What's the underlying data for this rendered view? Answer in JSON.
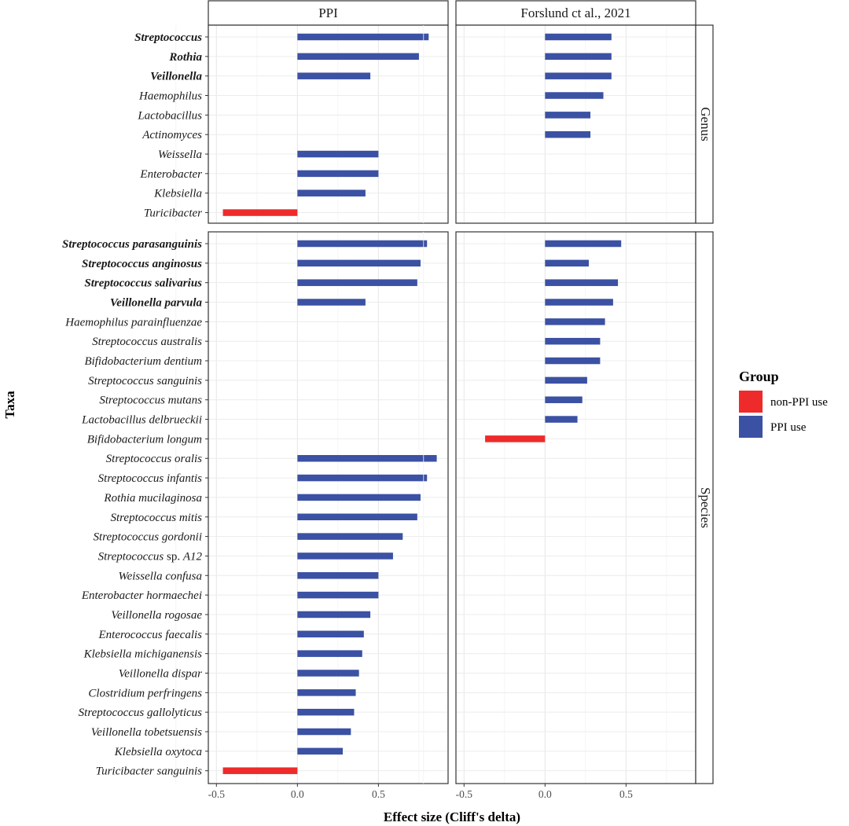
{
  "chart_data": {
    "type": "bar",
    "orientation": "horizontal",
    "xlabel": "Effect size (Cliff's delta)",
    "ylabel": "Taxa",
    "xlim": [
      -0.55,
      0.93
    ],
    "xticks": [
      -0.5,
      0.0,
      0.5
    ],
    "xtick_labels": [
      "-0.5",
      "0.0",
      "0.5"
    ],
    "grid": true,
    "legend": {
      "title": "Group",
      "position": "right",
      "entries": [
        {
          "key": "non-PPI",
          "label": "non-PPI use",
          "color": "#ee2a2a"
        },
        {
          "key": "PPI",
          "label": "PPI use",
          "color": "#3b51a3"
        }
      ]
    },
    "columns": [
      {
        "key": "ppi",
        "label": "PPI"
      },
      {
        "key": "forslund",
        "label": "Forslund ct al., 2021"
      }
    ],
    "panels": [
      {
        "key": "genus",
        "label": "Genus",
        "rows": [
          {
            "label": "Streptococcus",
            "bold": true,
            "values": {
              "ppi": 0.81,
              "forslund": 0.41
            }
          },
          {
            "label": "Rothia",
            "bold": true,
            "values": {
              "ppi": 0.75,
              "forslund": 0.41
            }
          },
          {
            "label": "Veillonella",
            "bold": true,
            "values": {
              "ppi": 0.45,
              "forslund": 0.41
            }
          },
          {
            "label": "Haemophilus",
            "bold": false,
            "values": {
              "ppi": null,
              "forslund": 0.36
            }
          },
          {
            "label": "Lactobacillus",
            "bold": false,
            "values": {
              "ppi": null,
              "forslund": 0.28
            }
          },
          {
            "label": "Actinomyces",
            "bold": false,
            "values": {
              "ppi": null,
              "forslund": 0.28
            }
          },
          {
            "label": "Weissella",
            "bold": false,
            "values": {
              "ppi": 0.5,
              "forslund": null
            }
          },
          {
            "label": "Enterobacter",
            "bold": false,
            "values": {
              "ppi": 0.5,
              "forslund": null
            }
          },
          {
            "label": "Klebsiella",
            "bold": false,
            "values": {
              "ppi": 0.42,
              "forslund": null
            }
          },
          {
            "label": "Turicibacter",
            "bold": false,
            "values": {
              "ppi": -0.46,
              "forslund": null
            }
          }
        ]
      },
      {
        "key": "species",
        "label": "Species",
        "rows": [
          {
            "label": "Streptococcus parasanguinis",
            "bold": true,
            "values": {
              "ppi": 0.8,
              "forslund": 0.47
            }
          },
          {
            "label": "Streptococcus anginosus",
            "bold": true,
            "values": {
              "ppi": 0.76,
              "forslund": 0.27
            }
          },
          {
            "label": "Streptococcus salivarius",
            "bold": true,
            "values": {
              "ppi": 0.74,
              "forslund": 0.45
            }
          },
          {
            "label": "Veillonella parvula",
            "bold": true,
            "values": {
              "ppi": 0.42,
              "forslund": 0.42
            }
          },
          {
            "label": "Haemophilus parainfluenzae",
            "bold": false,
            "values": {
              "ppi": null,
              "forslund": 0.37
            }
          },
          {
            "label": "Streptococcus australis",
            "bold": false,
            "values": {
              "ppi": null,
              "forslund": 0.34
            }
          },
          {
            "label": "Bifidobacterium dentium",
            "bold": false,
            "values": {
              "ppi": null,
              "forslund": 0.34
            }
          },
          {
            "label": "Streptococcus sanguinis",
            "bold": false,
            "values": {
              "ppi": null,
              "forslund": 0.26
            }
          },
          {
            "label": "Streptococcus mutans",
            "bold": false,
            "values": {
              "ppi": null,
              "forslund": 0.23
            }
          },
          {
            "label": "Lactobacillus delbrueckii",
            "bold": false,
            "values": {
              "ppi": null,
              "forslund": 0.2
            }
          },
          {
            "label": "Bifidobacterium longum",
            "bold": false,
            "values": {
              "ppi": null,
              "forslund": -0.37
            }
          },
          {
            "label": "Streptococcus oralis",
            "bold": false,
            "values": {
              "ppi": 0.86,
              "forslund": null
            }
          },
          {
            "label": "Streptococcus infantis",
            "bold": false,
            "values": {
              "ppi": 0.8,
              "forslund": null
            }
          },
          {
            "label": "Rothia mucilaginosa",
            "bold": false,
            "values": {
              "ppi": 0.76,
              "forslund": null
            }
          },
          {
            "label": "Streptococcus mitis",
            "bold": false,
            "values": {
              "ppi": 0.74,
              "forslund": null
            }
          },
          {
            "label": "Streptococcus gordonii",
            "bold": false,
            "values": {
              "ppi": 0.65,
              "forslund": null
            }
          },
          {
            "label": "Streptococcus sp. A12",
            "bold": false,
            "values": {
              "ppi": 0.59,
              "forslund": null
            }
          },
          {
            "label": "Weissella confusa",
            "bold": false,
            "values": {
              "ppi": 0.5,
              "forslund": null
            }
          },
          {
            "label": "Enterobacter hormaechei",
            "bold": false,
            "values": {
              "ppi": 0.5,
              "forslund": null
            }
          },
          {
            "label": "Veillonella rogosae",
            "bold": false,
            "values": {
              "ppi": 0.45,
              "forslund": null
            }
          },
          {
            "label": "Enterococcus faecalis",
            "bold": false,
            "values": {
              "ppi": 0.41,
              "forslund": null
            }
          },
          {
            "label": "Klebsiella michiganensis",
            "bold": false,
            "values": {
              "ppi": 0.4,
              "forslund": null
            }
          },
          {
            "label": "Veillonella dispar",
            "bold": false,
            "values": {
              "ppi": 0.38,
              "forslund": null
            }
          },
          {
            "label": "Clostridium perfringens",
            "bold": false,
            "values": {
              "ppi": 0.36,
              "forslund": null
            }
          },
          {
            "label": "Streptococcus gallolyticus",
            "bold": false,
            "values": {
              "ppi": 0.35,
              "forslund": null
            }
          },
          {
            "label": "Veillonella tobetsuensis",
            "bold": false,
            "values": {
              "ppi": 0.33,
              "forslund": null
            }
          },
          {
            "label": "Klebsiella oxytoca",
            "bold": false,
            "values": {
              "ppi": 0.28,
              "forslund": null
            }
          },
          {
            "label": "Turicibacter sanguinis",
            "bold": false,
            "values": {
              "ppi": -0.46,
              "forslund": null
            }
          }
        ]
      }
    ]
  }
}
